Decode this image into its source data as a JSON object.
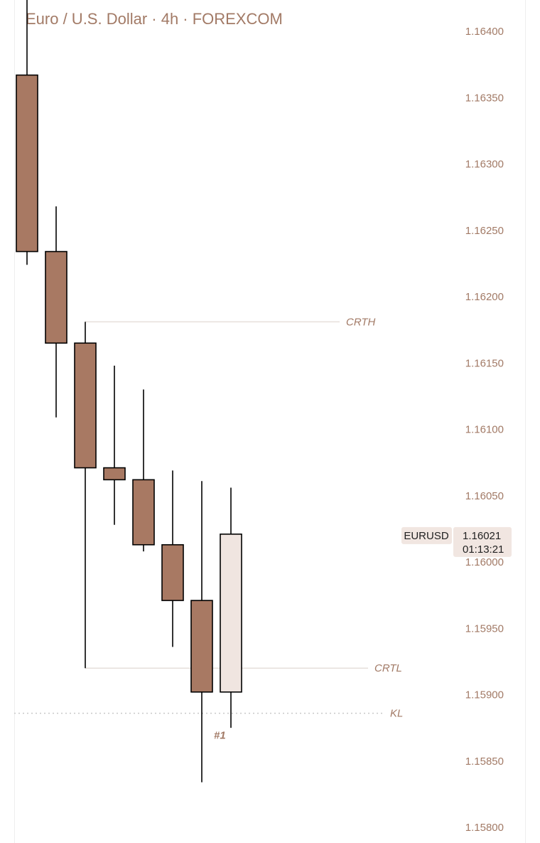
{
  "header": {
    "title": "Euro / U.S. Dollar · 4h · FOREXCOM"
  },
  "chart_data": {
    "type": "candlestick",
    "title": "Euro / U.S. Dollar · 4h · FOREXCOM",
    "ylim": [
      1.15795,
      1.16422
    ],
    "y_ticks": [
      "1.16400",
      "1.16350",
      "1.16300",
      "1.16250",
      "1.16200",
      "1.16150",
      "1.16100",
      "1.16050",
      "1.16000",
      "1.15950",
      "1.15900",
      "1.15850",
      "1.15800"
    ],
    "candles": [
      {
        "open": 1.16367,
        "high": 1.1643,
        "low": 1.16224,
        "close": 1.16234,
        "direction": "down"
      },
      {
        "open": 1.16234,
        "high": 1.16268,
        "low": 1.16109,
        "close": 1.16165,
        "direction": "down"
      },
      {
        "open": 1.16165,
        "high": 1.16181,
        "low": 1.1592,
        "close": 1.16071,
        "direction": "down"
      },
      {
        "open": 1.16071,
        "high": 1.16148,
        "low": 1.16028,
        "close": 1.16062,
        "direction": "down"
      },
      {
        "open": 1.16062,
        "high": 1.1613,
        "low": 1.16008,
        "close": 1.16013,
        "direction": "down"
      },
      {
        "open": 1.16013,
        "high": 1.16069,
        "low": 1.15936,
        "close": 1.15971,
        "direction": "down"
      },
      {
        "open": 1.15971,
        "high": 1.16061,
        "low": 1.15834,
        "close": 1.15902,
        "direction": "down"
      },
      {
        "open": 1.15902,
        "high": 1.16056,
        "low": 1.15875,
        "close": 1.16021,
        "direction": "up"
      }
    ],
    "levels": [
      {
        "name": "CRTH",
        "price": 1.16181,
        "from_candle": 2,
        "style": "solid"
      },
      {
        "name": "CRTL",
        "price": 1.1592,
        "from_candle": 2,
        "style": "solid"
      },
      {
        "name": "KL",
        "price": 1.15886,
        "from_candle": 0,
        "style": "dotted"
      }
    ],
    "annotations": [
      {
        "text": "#1",
        "candle": 6,
        "price": 1.15877
      }
    ],
    "price_badge": {
      "symbol": "EURUSD",
      "price": "1.16021",
      "countdown": "01:13:21",
      "value": 1.16021
    },
    "colors": {
      "down_fill": "#a87963",
      "up_fill": "#f0e5e0",
      "outline": "#000000",
      "text": "#a27a66",
      "level_line": "#e6dfdb",
      "badge_bg": "#f1e6e1"
    }
  }
}
